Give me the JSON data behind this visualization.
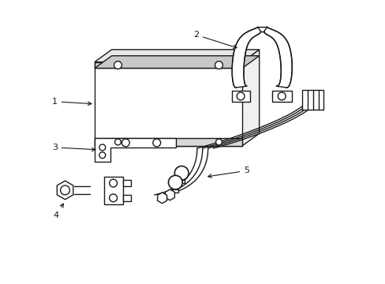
{
  "background_color": "#ffffff",
  "line_color": "#1a1a1a",
  "lw": 1.0,
  "fig_w": 4.89,
  "fig_h": 3.6,
  "dpi": 100
}
